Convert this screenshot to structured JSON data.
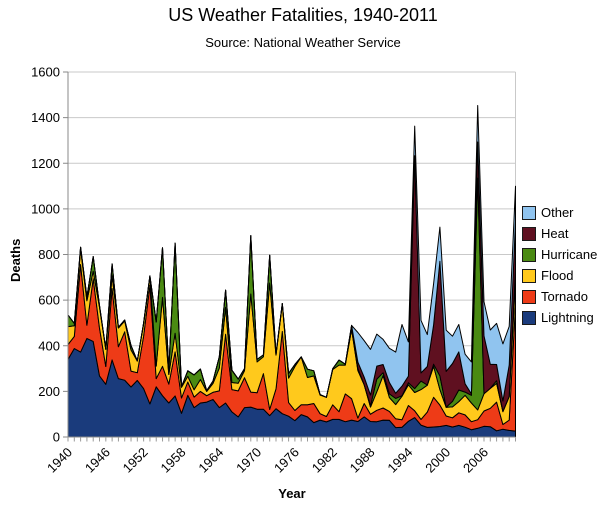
{
  "title": "US Weather Fatalities, 1940-2011",
  "subtitle": "Source: National Weather Service",
  "y_axis": {
    "label": "Deaths",
    "ticks": [
      0,
      200,
      400,
      600,
      800,
      1000,
      1200,
      1400,
      1600
    ]
  },
  "x_axis": {
    "label": "Year",
    "tick_labels": [
      1940,
      1946,
      1952,
      1958,
      1964,
      1970,
      1976,
      1982,
      1988,
      1994,
      2000,
      2006
    ]
  },
  "legend": {
    "items": [
      {
        "label": "Other",
        "color": "#90c4ef"
      },
      {
        "label": "Heat",
        "color": "#5f1020"
      },
      {
        "label": "Hurricane",
        "color": "#4a8a12"
      },
      {
        "label": "Flood",
        "color": "#ffc91c"
      },
      {
        "label": "Tornado",
        "color": "#ee3b17"
      },
      {
        "label": "Lightning",
        "color": "#1a3b7c"
      }
    ]
  },
  "chart_data": {
    "type": "area",
    "stacked": true,
    "title": "US Weather Fatalities, 1940-2011",
    "xlabel": "Year",
    "ylabel": "Deaths",
    "ylim": [
      0,
      1600
    ],
    "grid": true,
    "legend_position": "right",
    "x": [
      1940,
      1941,
      1942,
      1943,
      1944,
      1945,
      1946,
      1947,
      1948,
      1949,
      1950,
      1951,
      1952,
      1953,
      1954,
      1955,
      1956,
      1957,
      1958,
      1959,
      1960,
      1961,
      1962,
      1963,
      1964,
      1965,
      1966,
      1967,
      1968,
      1969,
      1970,
      1971,
      1972,
      1973,
      1974,
      1975,
      1976,
      1977,
      1978,
      1979,
      1980,
      1981,
      1982,
      1983,
      1984,
      1985,
      1986,
      1987,
      1988,
      1989,
      1990,
      1991,
      1992,
      1993,
      1994,
      1995,
      1996,
      1997,
      1998,
      1999,
      2000,
      2001,
      2002,
      2003,
      2004,
      2005,
      2006,
      2007,
      2008,
      2009,
      2010,
      2011
    ],
    "series": [
      {
        "name": "Lightning",
        "color": "#1a3b7c",
        "values": [
          340,
          388,
          372,
          432,
          419,
          268,
          231,
          338,
          256,
          249,
          219,
          248,
          212,
          145,
          220,
          181,
          149,
          180,
          104,
          183,
          129,
          149,
          153,
          165,
          129,
          149,
          110,
          88,
          129,
          131,
          122,
          122,
          94,
          124,
          102,
          91,
          72,
          98,
          88,
          63,
          74,
          66,
          77,
          77,
          67,
          74,
          68,
          88,
          68,
          67,
          74,
          73,
          41,
          43,
          69,
          85,
          52,
          42,
          44,
          46,
          51,
          44,
          51,
          43,
          32,
          38,
          47,
          45,
          27,
          34,
          29,
          26
        ]
      },
      {
        "name": "Tornado",
        "color": "#ee3b17",
        "values": [
          65,
          53,
          384,
          58,
          275,
          210,
          78,
          313,
          140,
          212,
          70,
          34,
          230,
          519,
          36,
          129,
          83,
          193,
          67,
          58,
          46,
          51,
          28,
          31,
          73,
          301,
          98,
          114,
          131,
          66,
          72,
          156,
          27,
          87,
          361,
          60,
          44,
          43,
          53,
          84,
          28,
          24,
          64,
          34,
          122,
          94,
          15,
          59,
          32,
          50,
          53,
          39,
          39,
          33,
          69,
          30,
          25,
          67,
          130,
          94,
          41,
          40,
          55,
          54,
          35,
          38,
          67,
          81,
          126,
          21,
          45,
          553
        ]
      },
      {
        "name": "Flood",
        "color": "#ffc91c",
        "values": [
          79,
          47,
          68,
          107,
          33,
          91,
          76,
          55,
          82,
          48,
          93,
          51,
          54,
          40,
          55,
          302,
          42,
          82,
          47,
          25,
          32,
          52,
          19,
          39,
          100,
          119,
          31,
          34,
          31,
          430,
          135,
          74,
          554,
          148,
          121,
          107,
          193,
          210,
          120,
          121,
          82,
          84,
          155,
          204,
          126,
          304,
          208,
          82,
          31,
          81,
          142,
          61,
          62,
          103,
          91,
          80,
          131,
          118,
          136,
          68,
          38,
          48,
          49,
          86,
          82,
          43,
          76,
          87,
          82,
          56,
          103,
          113
        ]
      },
      {
        "name": "Hurricane",
        "color": "#4a8a12",
        "values": [
          51,
          10,
          8,
          16,
          64,
          7,
          0,
          53,
          3,
          4,
          19,
          0,
          3,
          2,
          193,
          218,
          21,
          395,
          2,
          24,
          65,
          46,
          3,
          10,
          49,
          75,
          54,
          18,
          9,
          256,
          11,
          8,
          122,
          5,
          1,
          21,
          9,
          0,
          36,
          22,
          2,
          0,
          3,
          22,
          4,
          17,
          9,
          0,
          6,
          56,
          13,
          16,
          27,
          2,
          9,
          17,
          37,
          1,
          9,
          60,
          0,
          24,
          51,
          14,
          34,
          1016,
          0,
          1,
          12,
          2,
          0,
          46
        ]
      },
      {
        "name": "Heat",
        "color": "#5f1020",
        "values": [
          0,
          0,
          0,
          0,
          0,
          0,
          0,
          0,
          0,
          0,
          0,
          0,
          0,
          0,
          0,
          0,
          0,
          0,
          0,
          0,
          0,
          0,
          0,
          0,
          0,
          0,
          0,
          0,
          0,
          0,
          0,
          0,
          0,
          0,
          0,
          0,
          0,
          0,
          0,
          0,
          0,
          0,
          0,
          0,
          0,
          0,
          28,
          33,
          47,
          57,
          36,
          50,
          23,
          42,
          29,
          1021,
          36,
          81,
          173,
          502,
          158,
          166,
          167,
          36,
          6,
          158,
          253,
          105,
          71,
          45,
          138,
          206
        ]
      },
      {
        "name": "Other",
        "color": "#90c4ef",
        "values": [
          0,
          0,
          0,
          0,
          0,
          0,
          0,
          0,
          0,
          0,
          0,
          0,
          0,
          0,
          0,
          0,
          0,
          0,
          0,
          0,
          0,
          0,
          0,
          0,
          0,
          0,
          0,
          0,
          0,
          0,
          0,
          0,
          0,
          0,
          0,
          0,
          0,
          0,
          0,
          0,
          0,
          0,
          0,
          0,
          0,
          0,
          130,
          160,
          200,
          140,
          110,
          150,
          180,
          270,
          150,
          130,
          230,
          140,
          180,
          150,
          180,
          120,
          120,
          130,
          140,
          160,
          150,
          150,
          180,
          250,
          170,
          155
        ]
      }
    ]
  }
}
